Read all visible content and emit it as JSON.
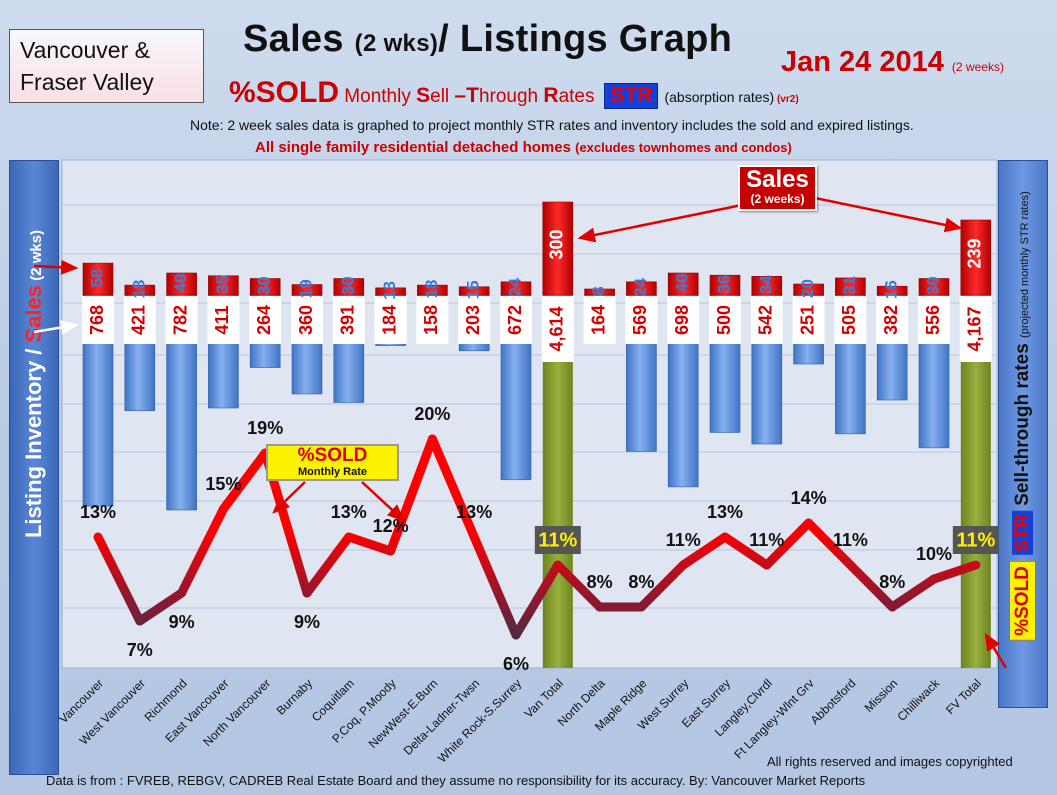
{
  "region": {
    "line1": "Vancouver &",
    "line2": "Fraser Valley"
  },
  "title": {
    "main_a": "Sales ",
    "main_small": "(2 wks)",
    "main_b": "/ Listings Graph"
  },
  "date": {
    "main": "Jan 24 2014",
    "note": "(2 weeks)"
  },
  "subtitle": {
    "pct_sold": "%SOLD",
    "m1": " Monthly ",
    "s": "S",
    "ell": "ell ",
    "dash_t": "–T",
    "hrough": "hrough ",
    "r": "R",
    "ates": "ates",
    "str": "STR",
    "absorption": "(absorption rates)",
    "vr": " (vr2)"
  },
  "note": "Note: 2 week sales data is graphed to project monthly STR rates and inventory includes the sold and expired listings.",
  "detached": {
    "main": "All single family residential detached homes ",
    "small": "(excludes townhomes and condos)"
  },
  "left_axis": {
    "part1": "Listing Inventory / ",
    "sales": "Sales",
    "small": " (2 wks)"
  },
  "right_axis": {
    "sold": "%SOLD",
    "str": "STR",
    "main": " Sell-through rates ",
    "small": "(projected monthly STR rates)"
  },
  "callouts": {
    "sales_big": "Sales",
    "sales_small": "(2 weeks)",
    "sold_big": "%SOLD",
    "sold_small": "Monthly Rate"
  },
  "copyright": "All rights reserved and  images copyrighted",
  "source": "Data is  from : FVREB, REBGV, CADREB Real Estate Board and they assume no responsibility  for its accuracy. By: Vancouver Market Reports",
  "colors": {
    "sales_bar": "#d40000",
    "listing_bar": "#4f86d8",
    "total_bar": "#7f9a2c",
    "line_high": "#ff0000",
    "line_low": "#3a3550"
  },
  "chart_data": {
    "type": "bar",
    "categories": [
      "Vancouver",
      "West Vancouver",
      "Richmond",
      "East Vancouver",
      "North Vancouver",
      "Burnaby",
      "Coquitlam",
      "P.Coq, P.Moody",
      "NewWest-E.Burn",
      "Delta-Ladner-Twsn",
      "White Rock-S.Surrey",
      "Van Total",
      "North Delta",
      "Maple Ridge",
      "West Surrey",
      "East Surrey",
      "Langley,Clvrdl",
      "Ft Langley-Wlnt Grv",
      "Abbotsford",
      "Mission",
      "Chilliwack",
      "FV Total"
    ],
    "sales": [
      58,
      18,
      40,
      35,
      30,
      19,
      30,
      13,
      18,
      15,
      24,
      300,
      8,
      24,
      40,
      36,
      34,
      20,
      31,
      16,
      30,
      239
    ],
    "listings": [
      768,
      421,
      782,
      411,
      264,
      360,
      391,
      184,
      158,
      203,
      672,
      4614,
      164,
      569,
      698,
      500,
      542,
      251,
      505,
      382,
      556,
      4167
    ],
    "listing_labels": [
      "768",
      "421",
      "782",
      "411",
      "264",
      "360",
      "391",
      "184",
      "158",
      "203",
      "672",
      "4,614",
      "164",
      "569",
      "698",
      "500",
      "542",
      "251",
      "505",
      "382",
      "556",
      "4,167"
    ],
    "str_pct": [
      13,
      7,
      9,
      15,
      19,
      9,
      13,
      12,
      20,
      13,
      6,
      11,
      8,
      8,
      11,
      13,
      11,
      14,
      11,
      8,
      10,
      11
    ],
    "str_labels": [
      "13%",
      "7%",
      "9%",
      "15%",
      "19%",
      "9%",
      "13%",
      "12%",
      "20%",
      "13%",
      "6%",
      "11%",
      "8%",
      "8%",
      "11%",
      "13%",
      "11%",
      "14%",
      "11%",
      "8%",
      "10%",
      "11%"
    ],
    "totals": [
      "Van Total",
      "FV Total"
    ],
    "grid": true
  }
}
